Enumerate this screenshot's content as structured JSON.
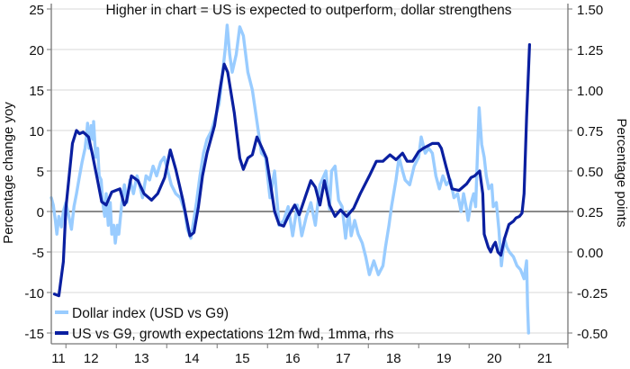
{
  "chart_data": {
    "type": "line",
    "title": "",
    "annotation": "Higher in chart = US is expected to outperform, dollar strengthens",
    "xlabel": "",
    "ylabel": "Percentage change yoy",
    "ylabel_right": "Percentage points",
    "x_tick_labels": [
      "11",
      "12",
      "13",
      "14",
      "15",
      "16",
      "17",
      "18",
      "19",
      "20",
      "21"
    ],
    "xlim": [
      11.71,
      21.96
    ],
    "ylim": [
      -15,
      25
    ],
    "ylim_right": [
      -0.5,
      1.5
    ],
    "y_ticks": [
      "25",
      "20",
      "15",
      "10",
      "5",
      "0",
      "-5",
      "-10",
      "-15"
    ],
    "y_ticks_right": [
      "1.50",
      "1.25",
      "1.00",
      "0.75",
      "0.50",
      "0.25",
      "0.00",
      "-0.25",
      "-0.50"
    ],
    "grid": true,
    "legend_position": "bottom-left",
    "colors": {
      "dollar": "#99ccff",
      "growth": "#0a1fa0",
      "zero_line": "#444444",
      "grid": "#e6e6e6"
    },
    "series": [
      {
        "name": "Dollar index (USD vs G9)",
        "axis": "left",
        "x": [
          11.71,
          11.75,
          11.79,
          11.82,
          11.86,
          11.91,
          11.95,
          12.0,
          12.05,
          12.11,
          12.16,
          12.21,
          12.27,
          12.32,
          12.38,
          12.41,
          12.43,
          12.46,
          12.5,
          12.54,
          12.55,
          12.59,
          12.63,
          12.66,
          12.7,
          12.73,
          12.77,
          12.8,
          12.84,
          12.88,
          12.91,
          12.95,
          12.98,
          13.02,
          13.05,
          13.11,
          13.16,
          13.21,
          13.27,
          13.34,
          13.41,
          13.46,
          13.52,
          13.59,
          13.66,
          13.73,
          13.8,
          13.88,
          13.95,
          14.02,
          14.09,
          14.18,
          14.27,
          14.36,
          14.41,
          14.48,
          14.52,
          14.59,
          14.66,
          14.73,
          14.8,
          14.89,
          15.04,
          15.16,
          15.2,
          15.25,
          15.3,
          15.38,
          15.45,
          15.52,
          15.61,
          15.7,
          15.79,
          15.88,
          15.96,
          16.05,
          16.14,
          16.23,
          16.32,
          16.41,
          16.5,
          16.59,
          16.68,
          16.77,
          16.86,
          16.95,
          17.04,
          17.16,
          17.23,
          17.27,
          17.34,
          17.41,
          17.48,
          17.55,
          17.61,
          17.66,
          17.73,
          17.8,
          17.88,
          17.95,
          18.02,
          18.11,
          18.2,
          18.29,
          18.34,
          18.41,
          18.46,
          18.55,
          18.61,
          18.68,
          18.73,
          18.82,
          18.91,
          19.0,
          19.05,
          19.13,
          19.2,
          19.27,
          19.34,
          19.41,
          19.48,
          19.55,
          19.63,
          19.7,
          19.77,
          19.84,
          19.89,
          19.95,
          19.98,
          20.04,
          20.09,
          20.13,
          20.16,
          20.2,
          20.25,
          20.3,
          20.34,
          20.39,
          20.45,
          20.48,
          20.54,
          20.59,
          20.64,
          20.7,
          20.75,
          20.8,
          20.88,
          20.95,
          21.02,
          21.09,
          21.14,
          21.16,
          21.18
        ],
        "values": [
          1.7,
          0.8,
          -1.1,
          -2.8,
          -0.6,
          -1.9,
          0.0,
          1.1,
          -0.3,
          -2.2,
          0.6,
          2.2,
          4.4,
          6.1,
          7.8,
          9.4,
          10.9,
          7.8,
          10.6,
          8.9,
          11.1,
          6.7,
          7.8,
          4.4,
          3.9,
          1.1,
          -0.6,
          2.2,
          -1.7,
          1.1,
          -2.8,
          -1.7,
          -3.9,
          -1.7,
          -2.8,
          1.1,
          3.3,
          1.1,
          3.9,
          2.2,
          4.4,
          3.3,
          1.7,
          4.4,
          3.9,
          5.6,
          4.4,
          6.1,
          6.7,
          5.0,
          3.3,
          2.2,
          1.7,
          0.0,
          -2.2,
          -3.3,
          -1.7,
          1.1,
          4.4,
          7.2,
          8.9,
          10.0,
          13.3,
          20.0,
          23.0,
          19.4,
          17.2,
          19.4,
          22.8,
          21.7,
          17.2,
          15.0,
          11.1,
          7.2,
          6.7,
          1.7,
          5.0,
          -1.7,
          -1.1,
          0.6,
          -3.0,
          0.8,
          -3.0,
          -0.6,
          1.1,
          -1.7,
          3.3,
          5.0,
          0.3,
          5.0,
          5.6,
          1.4,
          0.6,
          -3.3,
          0.0,
          -3.0,
          -1.1,
          -2.8,
          -3.9,
          -5.6,
          -7.8,
          -6.1,
          -7.8,
          -6.7,
          -4.4,
          -1.7,
          0.6,
          3.9,
          6.7,
          5.0,
          3.9,
          3.3,
          5.6,
          6.7,
          9.2,
          7.2,
          7.8,
          7.2,
          4.4,
          2.8,
          4.4,
          3.3,
          3.9,
          1.7,
          2.2,
          0.0,
          2.2,
          0.3,
          -1.1,
          1.1,
          2.2,
          0.6,
          6.1,
          12.8,
          8.3,
          6.7,
          4.4,
          2.8,
          3.3,
          0.6,
          1.1,
          -2.2,
          -6.7,
          -3.3,
          -4.4,
          -5.0,
          -5.6,
          -6.7,
          -7.2,
          -8.3,
          -6.1,
          -11.7,
          -15.0
        ]
      },
      {
        "name": "US vs G9, growth expectations 12m fwd, 1mma, rhs",
        "axis": "right",
        "x": [
          11.77,
          11.86,
          11.95,
          12.0,
          12.13,
          12.21,
          12.27,
          12.34,
          12.38,
          12.45,
          12.52,
          12.63,
          12.71,
          12.8,
          12.91,
          13.07,
          13.16,
          13.2,
          13.3,
          13.43,
          13.55,
          13.7,
          13.82,
          13.96,
          14.07,
          14.18,
          14.32,
          14.46,
          14.54,
          14.63,
          14.71,
          14.8,
          14.95,
          15.07,
          15.14,
          15.21,
          15.34,
          15.45,
          15.52,
          15.61,
          15.7,
          15.79,
          15.88,
          15.98,
          16.05,
          16.14,
          16.23,
          16.32,
          16.41,
          16.54,
          16.63,
          16.77,
          16.86,
          16.95,
          17.04,
          17.13,
          17.23,
          17.34,
          17.45,
          17.57,
          17.71,
          17.84,
          18.02,
          18.16,
          18.29,
          18.43,
          18.55,
          18.68,
          18.77,
          18.88,
          19.0,
          19.09,
          19.27,
          19.39,
          19.45,
          19.54,
          19.66,
          19.8,
          19.95,
          20.04,
          20.11,
          20.21,
          20.27,
          20.3,
          20.38,
          20.43,
          20.48,
          20.52,
          20.57,
          20.63,
          20.7,
          20.79,
          20.88,
          20.93,
          21.0,
          21.05,
          21.09,
          21.14,
          21.2
        ],
        "values": [
          -0.26,
          -0.27,
          -0.06,
          0.27,
          0.67,
          0.75,
          0.73,
          0.74,
          0.73,
          0.71,
          0.61,
          0.44,
          0.31,
          0.29,
          0.37,
          0.39,
          0.29,
          0.31,
          0.47,
          0.44,
          0.36,
          0.32,
          0.36,
          0.46,
          0.63,
          0.51,
          0.32,
          0.1,
          0.12,
          0.28,
          0.47,
          0.61,
          0.78,
          1.03,
          1.16,
          1.11,
          0.86,
          0.58,
          0.51,
          0.58,
          0.6,
          0.71,
          0.65,
          0.58,
          0.44,
          0.25,
          0.17,
          0.16,
          0.22,
          0.29,
          0.23,
          0.36,
          0.44,
          0.4,
          0.29,
          0.44,
          0.29,
          0.22,
          0.26,
          0.22,
          0.27,
          0.36,
          0.47,
          0.56,
          0.56,
          0.6,
          0.57,
          0.61,
          0.56,
          0.56,
          0.62,
          0.64,
          0.67,
          0.67,
          0.64,
          0.53,
          0.39,
          0.38,
          0.42,
          0.46,
          0.47,
          0.5,
          0.36,
          0.11,
          0.03,
          0.0,
          0.04,
          0.06,
          0.0,
          -0.02,
          0.08,
          0.17,
          0.19,
          0.21,
          0.22,
          0.24,
          0.36,
          0.83,
          1.28
        ]
      }
    ]
  }
}
